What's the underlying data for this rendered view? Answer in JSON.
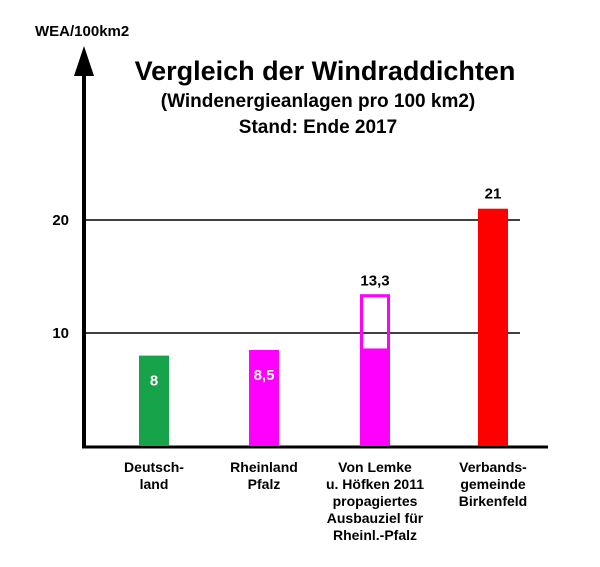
{
  "chart_data": {
    "type": "bar",
    "title": "Vergleich der Windraddichten",
    "subtitle": "(Windenergieanlagen pro 100 km2)",
    "subtitle2": "Stand: Ende 2017",
    "ylabel": "WEA/100km2",
    "ylim": [
      0,
      21.5
    ],
    "yticks": [
      "10",
      "20"
    ],
    "categories": [
      [
        "Deutsch-",
        "land"
      ],
      [
        "Rheinland",
        "Pfalz"
      ],
      [
        "Von Lemke",
        "u. Höfken 2011",
        "propagiertes",
        "Ausbauziel für",
        "Rheinl.-Pfalz"
      ],
      [
        "Verbands-",
        "gemeinde",
        "Birkenfeld"
      ]
    ],
    "values": [
      8,
      8.5,
      13.3,
      21
    ],
    "value_labels": [
      "8",
      "8,5",
      "13,3",
      "21"
    ],
    "colors": [
      "#16a34a",
      "#ff00ff",
      "#ff00ff",
      "#ff0000"
    ],
    "outline_from": [
      null,
      null,
      8.5,
      null
    ],
    "grid_lines_at": [
      10,
      20
    ]
  }
}
